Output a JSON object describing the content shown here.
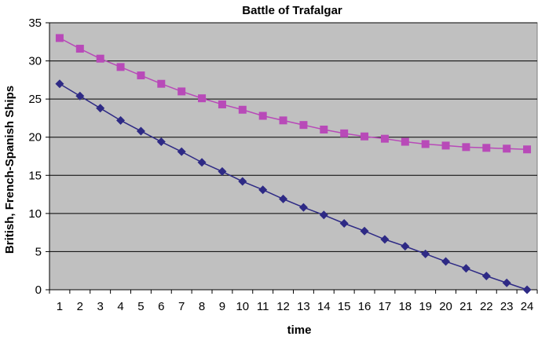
{
  "chart_data": {
    "type": "line",
    "title": "Battle of Trafalgar",
    "xlabel": "time",
    "ylabel": "British, French-Spanish Ships",
    "x": [
      1,
      2,
      3,
      4,
      5,
      6,
      7,
      8,
      9,
      10,
      11,
      12,
      13,
      14,
      15,
      16,
      17,
      18,
      19,
      20,
      21,
      22,
      23,
      24
    ],
    "ylim": [
      0,
      35
    ],
    "yticks": [
      0,
      5,
      10,
      15,
      20,
      25,
      30,
      35
    ],
    "grid": true,
    "legend": "none",
    "plot_background": "#c0c0c0",
    "series": [
      {
        "marker": "square",
        "color": "#b84ab8",
        "values": [
          33.0,
          31.6,
          30.3,
          29.2,
          28.1,
          27.0,
          26.0,
          25.1,
          24.3,
          23.6,
          22.8,
          22.2,
          21.6,
          21.0,
          20.5,
          20.1,
          19.8,
          19.4,
          19.1,
          18.9,
          18.7,
          18.6,
          18.5,
          18.4
        ]
      },
      {
        "marker": "diamond",
        "color": "#2e2a85",
        "values": [
          27.0,
          25.4,
          23.8,
          22.2,
          20.8,
          19.4,
          18.1,
          16.7,
          15.5,
          14.2,
          13.1,
          11.9,
          10.8,
          9.8,
          8.7,
          7.7,
          6.6,
          5.7,
          4.7,
          3.7,
          2.8,
          1.8,
          0.9,
          0.0
        ]
      }
    ]
  }
}
